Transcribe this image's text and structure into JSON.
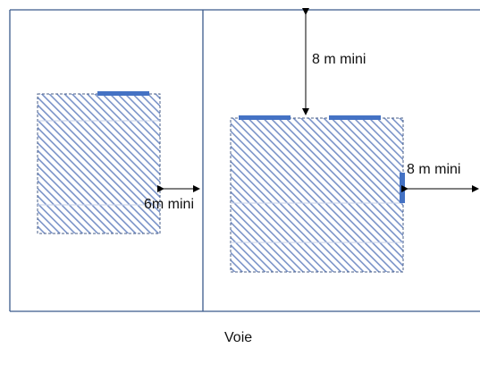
{
  "labels": {
    "rear_setback": "8 m mini",
    "side_setback": "8 m mini",
    "between_buildings": "6m mini",
    "road": "Voie"
  },
  "colors": {
    "parcel_line": "#3b5a8c",
    "hatch": "#7a93c8",
    "opening": "#4472c4",
    "arrow": "#000000"
  }
}
